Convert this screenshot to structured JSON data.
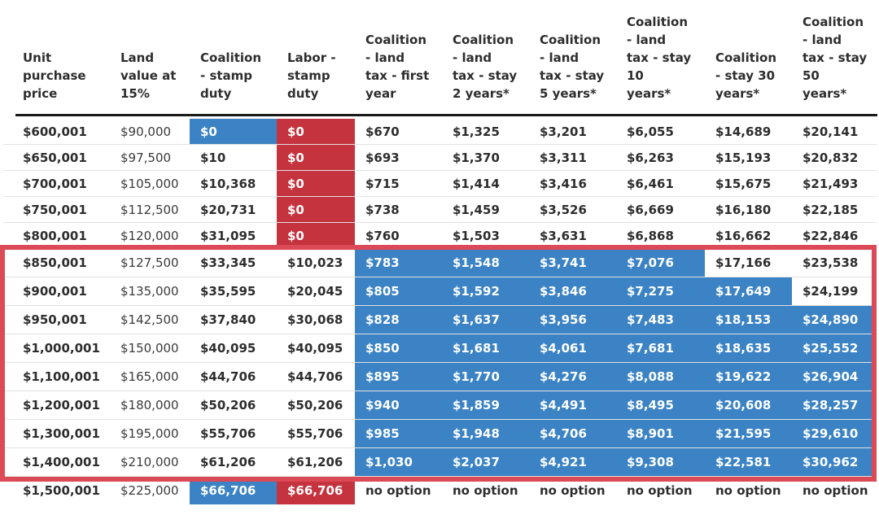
{
  "colors": {
    "blue": "#3b83c4",
    "red": "#c5333f",
    "box_red": "#db4a56",
    "header_rule": "#1a1a1a",
    "separator": "#e2e2e2",
    "text": "#2d2d2d",
    "text_secondary": "#3a3a3a"
  },
  "table": {
    "header_labels": [
      "Unit\npurchase\nprice",
      "Land\nvalue at\n15%",
      "Coalition\n- stamp\nduty",
      "Labor -\nstamp\nduty",
      "Coalition\n- land\ntax - first\nyear",
      "Coalition\n- land\ntax - stay\n2 years*",
      "Coalition\n- land\ntax - stay\n5 years*",
      "Coalition\n- land\ntax - stay\n10\nyears*",
      "Coalition\n- stay 30\nyears*",
      "Coalition\n- land\ntax - stay\n50\nyears*"
    ],
    "cell_styles": [
      [
        "p",
        "p",
        "b",
        "r",
        "p",
        "p",
        "p",
        "p",
        "p",
        "p"
      ],
      [
        "p",
        "p",
        "p",
        "r",
        "p",
        "p",
        "p",
        "p",
        "p",
        "p"
      ],
      [
        "p",
        "p",
        "p",
        "r",
        "p",
        "p",
        "p",
        "p",
        "p",
        "p"
      ],
      [
        "p",
        "p",
        "p",
        "r",
        "p",
        "p",
        "p",
        "p",
        "p",
        "p"
      ],
      [
        "p",
        "p",
        "p",
        "r",
        "p",
        "p",
        "p",
        "p",
        "p",
        "p"
      ],
      [
        "p",
        "p",
        "p",
        "p",
        "b",
        "b",
        "b",
        "b",
        "p",
        "p"
      ],
      [
        "p",
        "p",
        "p",
        "p",
        "b",
        "b",
        "b",
        "b",
        "b",
        "p"
      ],
      [
        "p",
        "p",
        "p",
        "p",
        "b",
        "b",
        "b",
        "b",
        "b",
        "b"
      ],
      [
        "p",
        "p",
        "p",
        "p",
        "b",
        "b",
        "b",
        "b",
        "b",
        "b"
      ],
      [
        "p",
        "p",
        "p",
        "p",
        "b",
        "b",
        "b",
        "b",
        "b",
        "b"
      ],
      [
        "p",
        "p",
        "p",
        "p",
        "b",
        "b",
        "b",
        "b",
        "b",
        "b"
      ],
      [
        "p",
        "p",
        "p",
        "p",
        "b",
        "b",
        "b",
        "b",
        "b",
        "b"
      ],
      [
        "p",
        "p",
        "p",
        "p",
        "b",
        "b",
        "b",
        "b",
        "b",
        "b"
      ],
      [
        "p",
        "p",
        "b",
        "r",
        "p",
        "p",
        "p",
        "p",
        "p",
        "p"
      ]
    ],
    "outlined_row_range": [
      5,
      12
    ]
  },
  "chart_data": {
    "type": "table",
    "columns": [
      "Unit purchase price",
      "Land value at 15%",
      "Coalition - stamp duty",
      "Labor - stamp duty",
      "Coalition - land tax - first year",
      "Coalition - land tax - stay 2 years*",
      "Coalition - land tax - stay 5 years*",
      "Coalition - land tax - stay 10 years*",
      "Coalition - stay 30 years*",
      "Coalition - land tax - stay 50 years*"
    ],
    "rows": [
      [
        "$600,001",
        "$90,000",
        "$0",
        "$0",
        "$670",
        "$1,325",
        "$3,201",
        "$6,055",
        "$14,689",
        "$20,141"
      ],
      [
        "$650,001",
        "$97,500",
        "$10",
        "$0",
        "$693",
        "$1,370",
        "$3,311",
        "$6,263",
        "$15,193",
        "$20,832"
      ],
      [
        "$700,001",
        "$105,000",
        "$10,368",
        "$0",
        "$715",
        "$1,414",
        "$3,416",
        "$6,461",
        "$15,675",
        "$21,493"
      ],
      [
        "$750,001",
        "$112,500",
        "$20,731",
        "$0",
        "$738",
        "$1,459",
        "$3,526",
        "$6,669",
        "$16,180",
        "$22,185"
      ],
      [
        "$800,001",
        "$120,000",
        "$31,095",
        "$0",
        "$760",
        "$1,503",
        "$3,631",
        "$6,868",
        "$16,662",
        "$22,846"
      ],
      [
        "$850,001",
        "$127,500",
        "$33,345",
        "$10,023",
        "$783",
        "$1,548",
        "$3,741",
        "$7,076",
        "$17,166",
        "$23,538"
      ],
      [
        "$900,001",
        "$135,000",
        "$35,595",
        "$20,045",
        "$805",
        "$1,592",
        "$3,846",
        "$7,275",
        "$17,649",
        "$24,199"
      ],
      [
        "$950,001",
        "$142,500",
        "$37,840",
        "$30,068",
        "$828",
        "$1,637",
        "$3,956",
        "$7,483",
        "$18,153",
        "$24,890"
      ],
      [
        "$1,000,001",
        "$150,000",
        "$40,095",
        "$40,095",
        "$850",
        "$1,681",
        "$4,061",
        "$7,681",
        "$18,635",
        "$25,552"
      ],
      [
        "$1,100,001",
        "$165,000",
        "$44,706",
        "$44,706",
        "$895",
        "$1,770",
        "$4,276",
        "$8,088",
        "$19,622",
        "$26,904"
      ],
      [
        "$1,200,001",
        "$180,000",
        "$50,206",
        "$50,206",
        "$940",
        "$1,859",
        "$4,491",
        "$8,495",
        "$20,608",
        "$28,257"
      ],
      [
        "$1,300,001",
        "$195,000",
        "$55,706",
        "$55,706",
        "$985",
        "$1,948",
        "$4,706",
        "$8,901",
        "$21,595",
        "$29,610"
      ],
      [
        "$1,400,001",
        "$210,000",
        "$61,206",
        "$61,206",
        "$1,030",
        "$2,037",
        "$4,921",
        "$9,308",
        "$22,581",
        "$30,962"
      ],
      [
        "$1,500,001",
        "$225,000",
        "$66,706",
        "$66,706",
        "no option",
        "no option",
        "no option",
        "no option",
        "no option",
        "no option"
      ]
    ],
    "highlight_semantics": {
      "blue_cells": "Coalition option highlighted",
      "red_cells": "Labor option highlighted",
      "red_outline": "rows $850,001 to $1,400,001 outlined"
    }
  }
}
